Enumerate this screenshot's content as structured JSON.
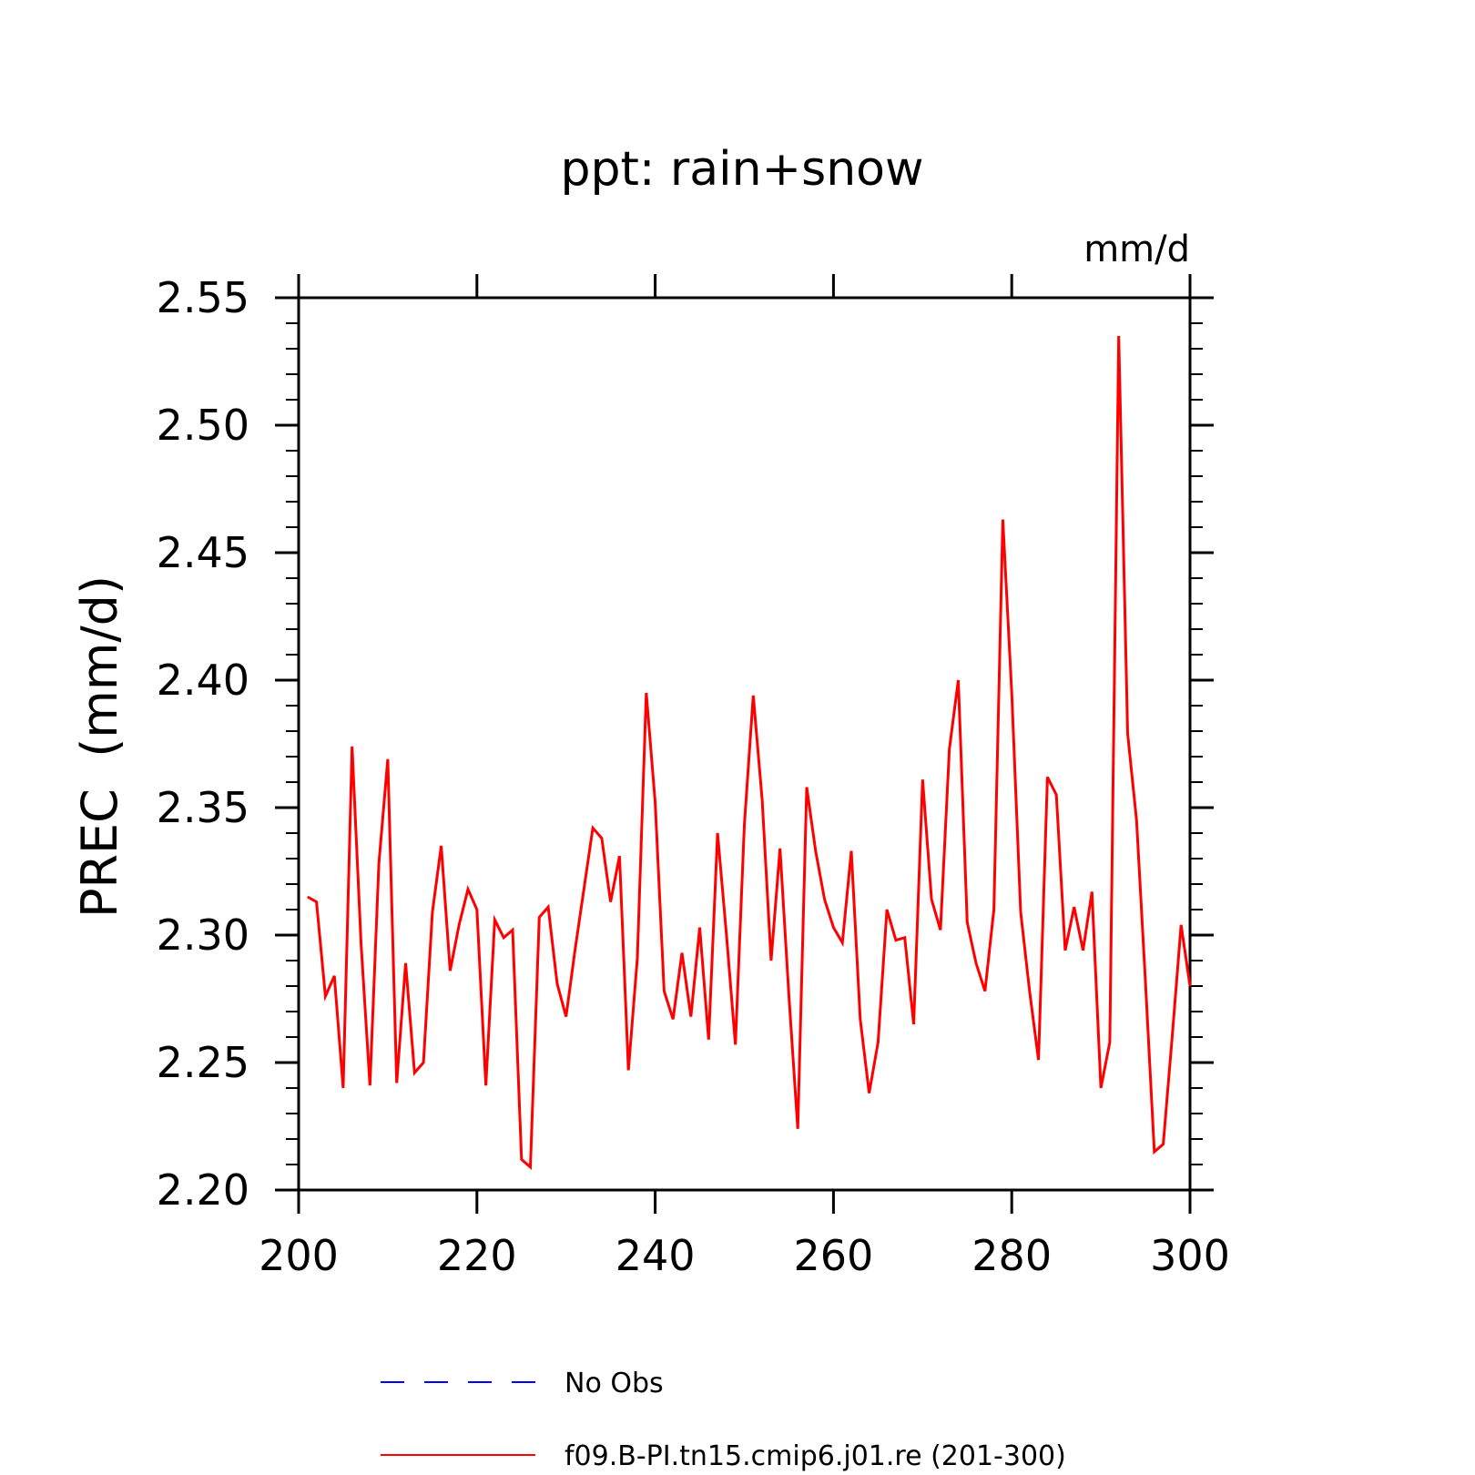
{
  "chart_data": {
    "type": "line",
    "title": "ppt: rain+snow",
    "units": "mm/d",
    "ylabel": "PREC  (mm/d)",
    "xlabel": "",
    "xlim": [
      200,
      300
    ],
    "ylim": [
      2.2,
      2.55
    ],
    "x_ticks": [
      "200",
      "220",
      "240",
      "260",
      "280",
      "300"
    ],
    "y_ticks": [
      "2.20",
      "2.25",
      "2.30",
      "2.35",
      "2.40",
      "2.45",
      "2.50",
      "2.55"
    ],
    "x_tick_values": [
      200,
      220,
      240,
      260,
      280,
      300
    ],
    "y_tick_values": [
      2.2,
      2.25,
      2.3,
      2.35,
      2.4,
      2.45,
      2.5,
      2.55
    ],
    "legend_position": "bottom",
    "series": [
      {
        "name": "No Obs",
        "color": "#0000ff",
        "style": "dashed",
        "x": [],
        "values": []
      },
      {
        "name": "f09.B-PI.tn15.cmip6.j01.re (201-300)",
        "color": "#ff0000",
        "style": "solid",
        "x": [
          201,
          202,
          203,
          204,
          205,
          206,
          207,
          208,
          209,
          210,
          211,
          212,
          213,
          214,
          215,
          216,
          217,
          218,
          219,
          220,
          221,
          222,
          223,
          224,
          225,
          226,
          227,
          228,
          229,
          230,
          231,
          232,
          233,
          234,
          235,
          236,
          237,
          238,
          239,
          240,
          241,
          242,
          243,
          244,
          245,
          246,
          247,
          248,
          249,
          250,
          251,
          252,
          253,
          254,
          255,
          256,
          257,
          258,
          259,
          260,
          261,
          262,
          263,
          264,
          265,
          266,
          267,
          268,
          269,
          270,
          271,
          272,
          273,
          274,
          275,
          276,
          277,
          278,
          279,
          280,
          281,
          282,
          283,
          284,
          285,
          286,
          287,
          288,
          289,
          290,
          291,
          292,
          293,
          294,
          295,
          296,
          297,
          298,
          299,
          300
        ],
        "values": [
          2.315,
          2.313,
          2.276,
          2.284,
          2.24,
          2.374,
          2.297,
          2.241,
          2.328,
          2.369,
          2.242,
          2.289,
          2.246,
          2.25,
          2.309,
          2.335,
          2.286,
          2.304,
          2.318,
          2.31,
          2.241,
          2.306,
          2.299,
          2.302,
          2.212,
          2.209,
          2.307,
          2.311,
          2.281,
          2.268,
          2.294,
          2.318,
          2.342,
          2.338,
          2.313,
          2.331,
          2.247,
          2.291,
          2.395,
          2.352,
          2.278,
          2.267,
          2.293,
          2.268,
          2.303,
          2.259,
          2.34,
          2.3,
          2.257,
          2.343,
          2.394,
          2.353,
          2.29,
          2.334,
          2.276,
          2.224,
          2.358,
          2.333,
          2.314,
          2.303,
          2.297,
          2.333,
          2.267,
          2.238,
          2.258,
          2.31,
          2.298,
          2.299,
          2.265,
          2.361,
          2.314,
          2.302,
          2.373,
          2.4,
          2.305,
          2.289,
          2.278,
          2.31,
          2.463,
          2.395,
          2.309,
          2.278,
          2.251,
          2.362,
          2.355,
          2.294,
          2.311,
          2.294,
          2.317,
          2.24,
          2.258,
          2.535,
          2.379,
          2.345,
          2.282,
          2.215,
          2.218,
          2.26,
          2.304,
          2.28
        ]
      }
    ]
  }
}
